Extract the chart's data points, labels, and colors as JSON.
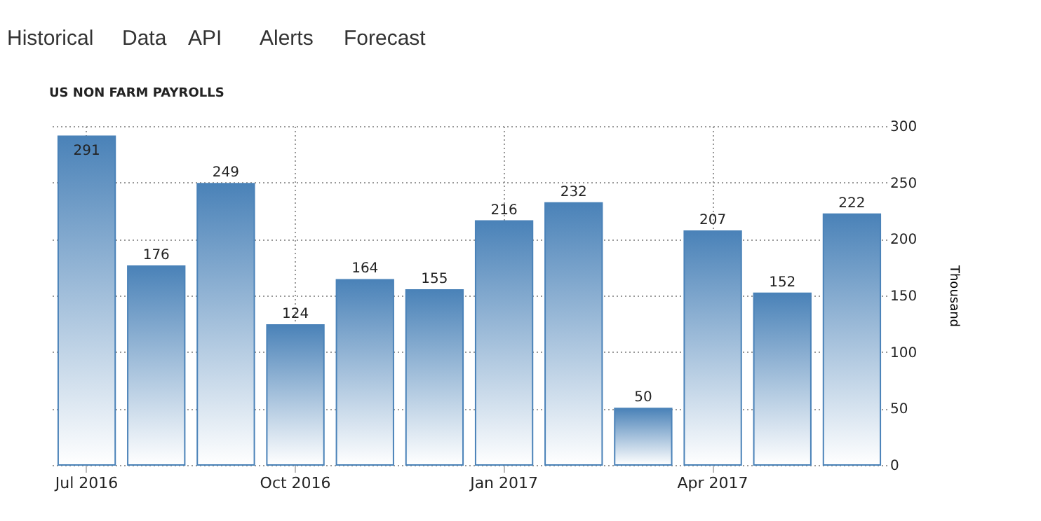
{
  "chart_data": {
    "type": "bar",
    "title": "US NON FARM PAYROLLS",
    "categories": [
      "Jul 2016",
      null,
      null,
      "Oct 2016",
      null,
      null,
      "Jan 2017",
      null,
      null,
      "Apr 2017",
      null,
      null
    ],
    "values": [
      291,
      176,
      249,
      124,
      164,
      155,
      216,
      232,
      50,
      207,
      152,
      222
    ],
    "color": "#4a82b8",
    "ylabel": "Thousand",
    "ylim": [
      0,
      300
    ],
    "yticks": [
      0,
      50,
      100,
      150,
      200,
      250,
      300
    ],
    "data_labels": true,
    "grid": true,
    "annotations": [
      "Historical",
      "Data",
      "API",
      "Alerts",
      "Forecast"
    ]
  }
}
